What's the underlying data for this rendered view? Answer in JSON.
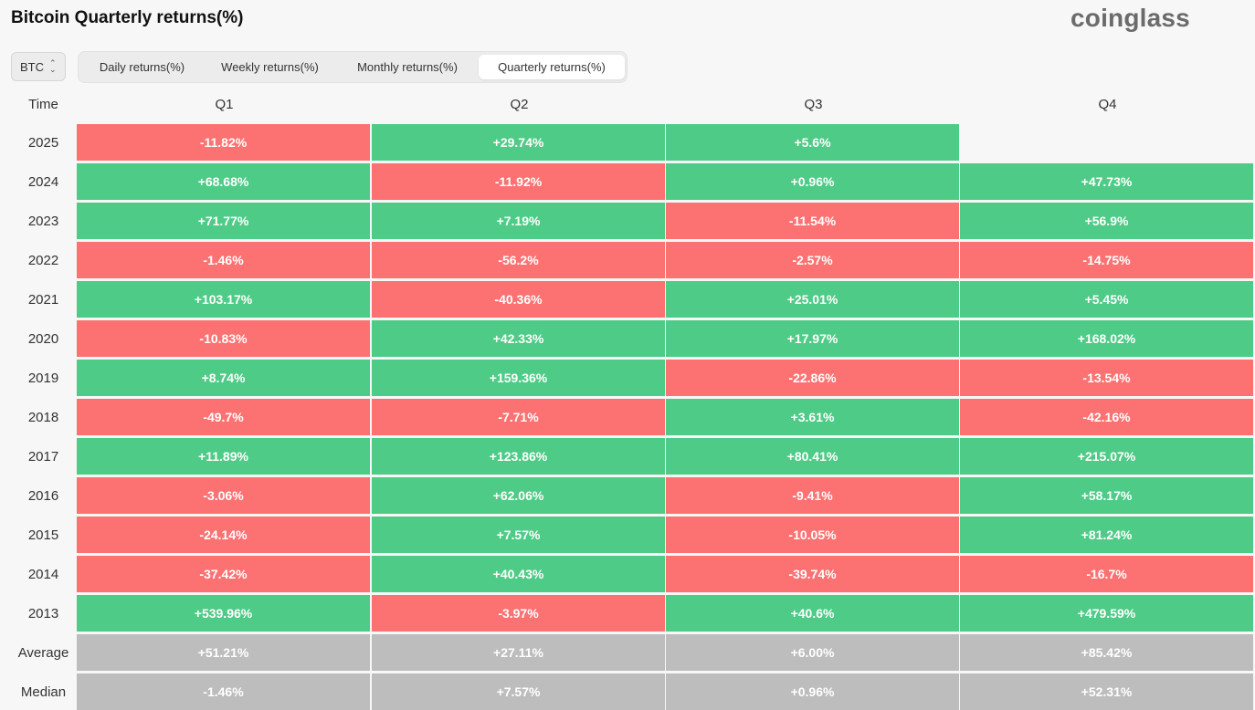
{
  "page": {
    "title": "Bitcoin Quarterly returns(%)",
    "logo": "coinglass"
  },
  "controls": {
    "asset": "BTC",
    "tabs": [
      {
        "label": "Daily returns(%)",
        "active": false
      },
      {
        "label": "Weekly returns(%)",
        "active": false
      },
      {
        "label": "Monthly returns(%)",
        "active": false
      },
      {
        "label": "Quarterly returns(%)",
        "active": true
      }
    ]
  },
  "table": {
    "time_header": "Time",
    "columns": [
      "Q1",
      "Q2",
      "Q3",
      "Q4"
    ],
    "rows": [
      {
        "year": "2025",
        "values": [
          "-11.82%",
          "+29.74%",
          "+5.6%",
          ""
        ]
      },
      {
        "year": "2024",
        "values": [
          "+68.68%",
          "-11.92%",
          "+0.96%",
          "+47.73%"
        ]
      },
      {
        "year": "2023",
        "values": [
          "+71.77%",
          "+7.19%",
          "-11.54%",
          "+56.9%"
        ]
      },
      {
        "year": "2022",
        "values": [
          "-1.46%",
          "-56.2%",
          "-2.57%",
          "-14.75%"
        ]
      },
      {
        "year": "2021",
        "values": [
          "+103.17%",
          "-40.36%",
          "+25.01%",
          "+5.45%"
        ]
      },
      {
        "year": "2020",
        "values": [
          "-10.83%",
          "+42.33%",
          "+17.97%",
          "+168.02%"
        ]
      },
      {
        "year": "2019",
        "values": [
          "+8.74%",
          "+159.36%",
          "-22.86%",
          "-13.54%"
        ]
      },
      {
        "year": "2018",
        "values": [
          "-49.7%",
          "-7.71%",
          "+3.61%",
          "-42.16%"
        ]
      },
      {
        "year": "2017",
        "values": [
          "+11.89%",
          "+123.86%",
          "+80.41%",
          "+215.07%"
        ]
      },
      {
        "year": "2016",
        "values": [
          "-3.06%",
          "+62.06%",
          "-9.41%",
          "+58.17%"
        ]
      },
      {
        "year": "2015",
        "values": [
          "-24.14%",
          "+7.57%",
          "-10.05%",
          "+81.24%"
        ]
      },
      {
        "year": "2014",
        "values": [
          "-37.42%",
          "+40.43%",
          "-39.74%",
          "-16.7%"
        ]
      },
      {
        "year": "2013",
        "values": [
          "+539.96%",
          "-3.97%",
          "+40.6%",
          "+479.59%"
        ]
      }
    ],
    "summary": [
      {
        "label": "Average",
        "values": [
          "+51.21%",
          "+27.11%",
          "+6.00%",
          "+85.42%"
        ]
      },
      {
        "label": "Median",
        "values": [
          "-1.46%",
          "+7.57%",
          "+0.96%",
          "+52.31%"
        ]
      }
    ]
  },
  "colors": {
    "positive": "#4ecb86",
    "negative": "#fc7171",
    "summary": "#bdbdbd"
  }
}
